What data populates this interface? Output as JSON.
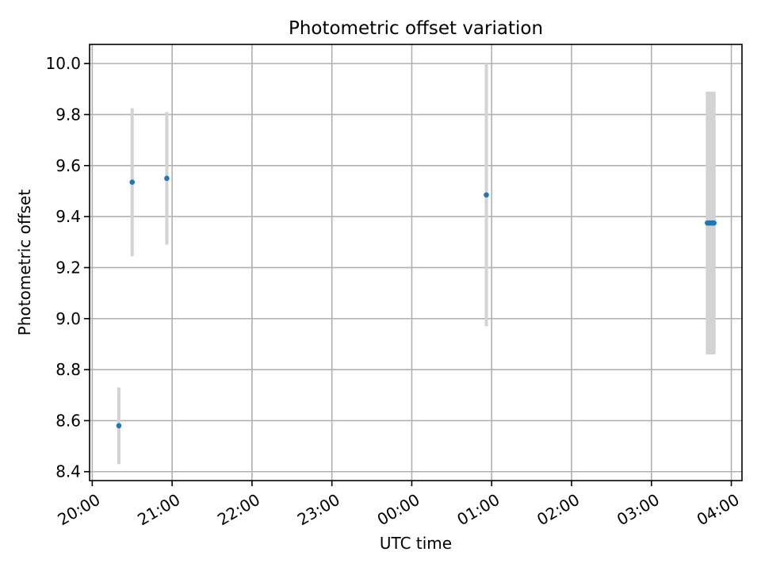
{
  "chart_data": {
    "type": "scatter",
    "title": "Photometric offset variation",
    "xlabel": "UTC time",
    "ylabel": "Photometric offset",
    "x_ticks": [
      "20:00",
      "21:00",
      "22:00",
      "23:00",
      "00:00",
      "01:00",
      "02:00",
      "03:00",
      "04:00"
    ],
    "y_ticks": [
      "8.4",
      "8.6",
      "8.8",
      "9.0",
      "9.2",
      "9.4",
      "9.6",
      "9.8",
      "10.0"
    ],
    "y_tick_values": [
      8.4,
      8.6,
      8.8,
      9.0,
      9.2,
      9.4,
      9.6,
      9.8,
      10.0
    ],
    "xlim": [
      "19:58",
      "04:08"
    ],
    "ylim": [
      8.365,
      10.075
    ],
    "grid": true,
    "colors": {
      "point": "#1f77b4",
      "errorbar": "#d3d3d3",
      "grid": "#b0b0b0"
    },
    "points": [
      {
        "x": "20:20",
        "y": 8.58,
        "yerr": 0.15,
        "cap": 0
      },
      {
        "x": "20:30",
        "y": 9.535,
        "yerr": 0.29,
        "cap": 0
      },
      {
        "x": "20:56",
        "y": 9.55,
        "yerr": 0.26,
        "cap": 0
      },
      {
        "x": "00:56",
        "y": 9.485,
        "yerr": 0.515,
        "cap": 0
      },
      {
        "x": "03:42",
        "y": 9.375,
        "yerr": 0.515,
        "cap": 0
      },
      {
        "x": "03:43",
        "y": 9.375,
        "yerr": 0.515,
        "cap": 0
      },
      {
        "x": "03:44",
        "y": 9.375,
        "yerr": 0.515,
        "cap": 0
      },
      {
        "x": "03:45",
        "y": 9.375,
        "yerr": 0.515,
        "cap": 0
      },
      {
        "x": "03:46",
        "y": 9.375,
        "yerr": 0.515,
        "cap": 0
      },
      {
        "x": "03:47",
        "y": 9.375,
        "yerr": 0.515,
        "cap": 0
      }
    ]
  }
}
